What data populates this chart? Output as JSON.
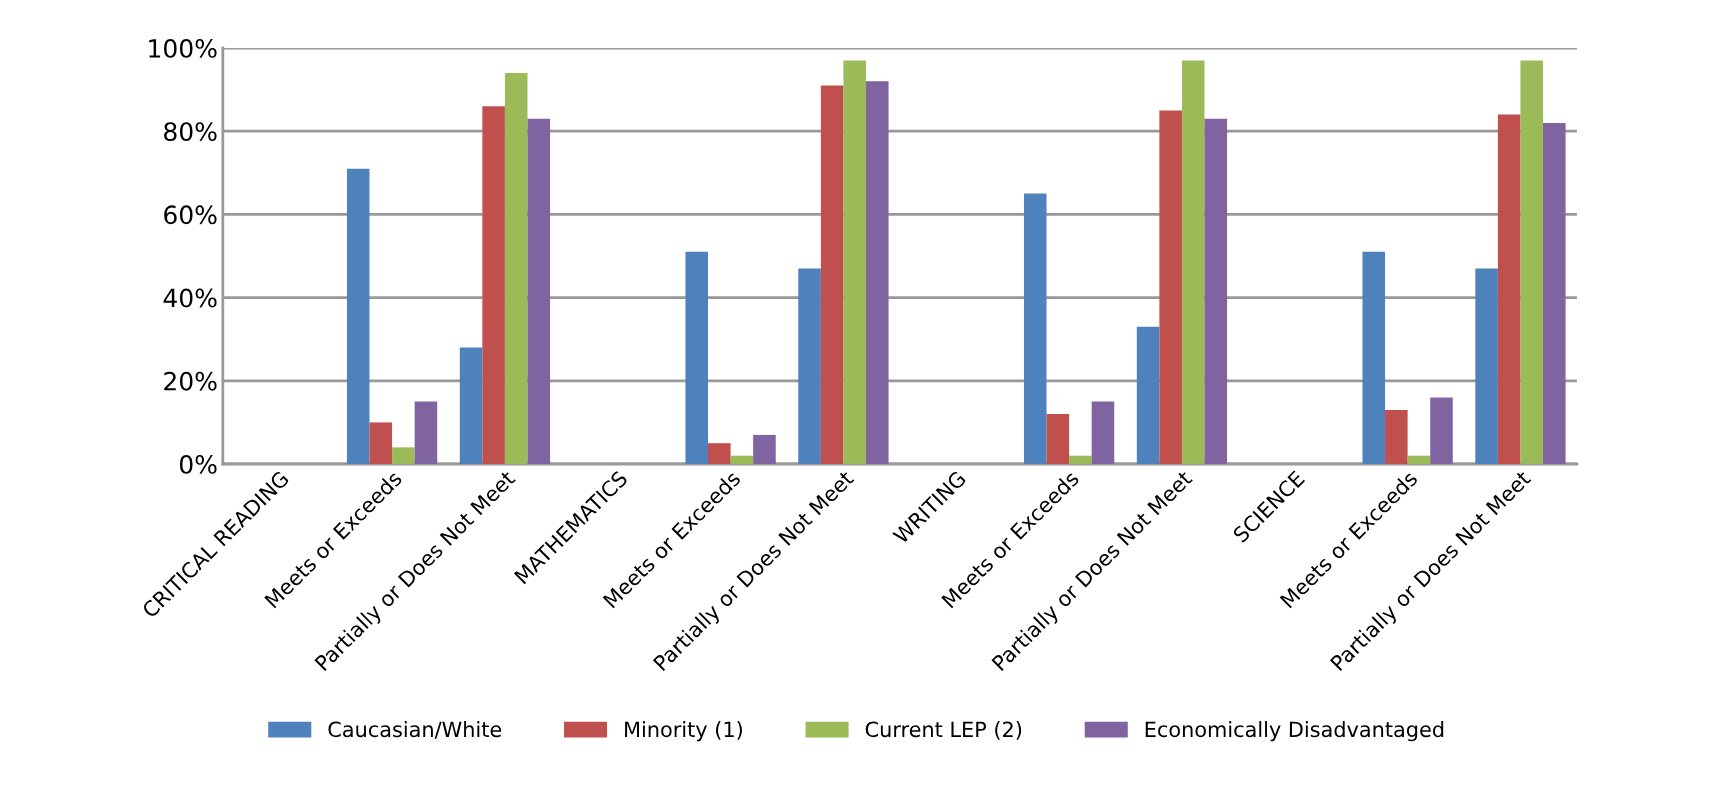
{
  "chart_data": {
    "type": "bar",
    "categories": [
      "CRITICAL READING",
      "Meets or Exceeds",
      "Partially or Does Not Meet",
      "MATHEMATICS",
      "Meets or Exceeds",
      "Partially or Does Not Meet",
      "WRITING",
      "Meets or Exceeds",
      "Partially or Does Not Meet",
      "SCIENCE",
      "Meets or Exceeds",
      "Partially or Does Not Meet"
    ],
    "series": [
      {
        "name": "Caucasian/White",
        "color": "#4f81bd",
        "values": [
          null,
          71,
          28,
          null,
          51,
          47,
          null,
          65,
          33,
          null,
          51,
          47
        ]
      },
      {
        "name": "Minority (1)",
        "color": "#c0504d",
        "values": [
          null,
          10,
          86,
          null,
          5,
          91,
          null,
          12,
          85,
          null,
          13,
          84
        ]
      },
      {
        "name": "Current LEP (2)",
        "color": "#9bbb59",
        "values": [
          null,
          4,
          94,
          null,
          2,
          97,
          null,
          2,
          97,
          null,
          2,
          97
        ]
      },
      {
        "name": "Economically Disadvantaged",
        "color": "#8064a2",
        "values": [
          null,
          15,
          83,
          null,
          7,
          92,
          null,
          15,
          83,
          null,
          16,
          82
        ]
      }
    ],
    "ylim": [
      0,
      100
    ],
    "yticks": [
      {
        "value": 0,
        "label": "0%"
      },
      {
        "value": 20,
        "label": "20%"
      },
      {
        "value": 40,
        "label": "40%"
      },
      {
        "value": 60,
        "label": "60%"
      },
      {
        "value": 80,
        "label": "80%"
      },
      {
        "value": 100,
        "label": "100%"
      }
    ],
    "grid": "y",
    "legend": "bottom"
  }
}
